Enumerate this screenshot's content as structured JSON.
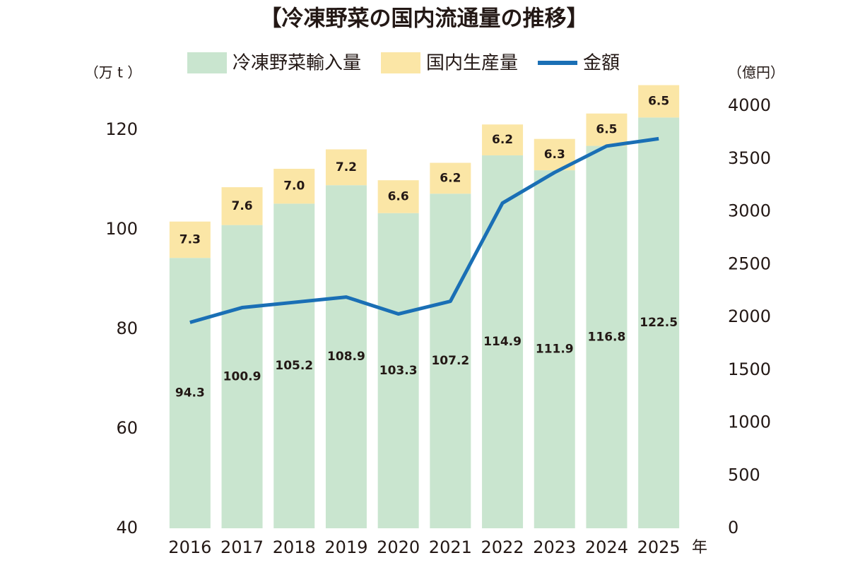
{
  "chart_data": {
    "type": "bar",
    "stacked": true,
    "title": "【冷凍野菜の国内流通量の推移】",
    "y_label": "（万 t ）",
    "y2_label": "（億円）",
    "x_label": "年",
    "categories": [
      "2016",
      "2017",
      "2018",
      "2019",
      "2020",
      "2021",
      "2022",
      "2023",
      "2024",
      "2025"
    ],
    "series": [
      {
        "name": "冷凍野菜輸入量",
        "color": "#c9e5cf",
        "type": "bar",
        "values": [
          94.3,
          100.9,
          105.2,
          108.9,
          103.3,
          107.2,
          114.9,
          111.9,
          116.8,
          122.5
        ]
      },
      {
        "name": "国内生産量",
        "color": "#fbe6a6",
        "type": "bar",
        "values": [
          7.3,
          7.6,
          7.0,
          7.2,
          6.6,
          6.2,
          6.2,
          6.3,
          6.5,
          6.5
        ],
        "value_labels": [
          "7.3",
          "7.6",
          "7.0",
          "7.2",
          "6.6",
          "6.2",
          "6.2",
          "6.3",
          "6.5",
          "6.5"
        ]
      },
      {
        "name": "金額",
        "color": "#1a6fb5",
        "type": "line",
        "axis": "y2",
        "values": [
          1950,
          2090,
          2140,
          2190,
          2030,
          2150,
          3080,
          3370,
          3620,
          3690
        ]
      }
    ],
    "ylim": [
      40,
      130
    ],
    "yticks": [
      40,
      60,
      80,
      100,
      120
    ],
    "y2lim": [
      0,
      4200
    ],
    "y2ticks": [
      0,
      500,
      1000,
      1500,
      2000,
      2500,
      3000,
      3500,
      4000
    ],
    "grid": false
  }
}
